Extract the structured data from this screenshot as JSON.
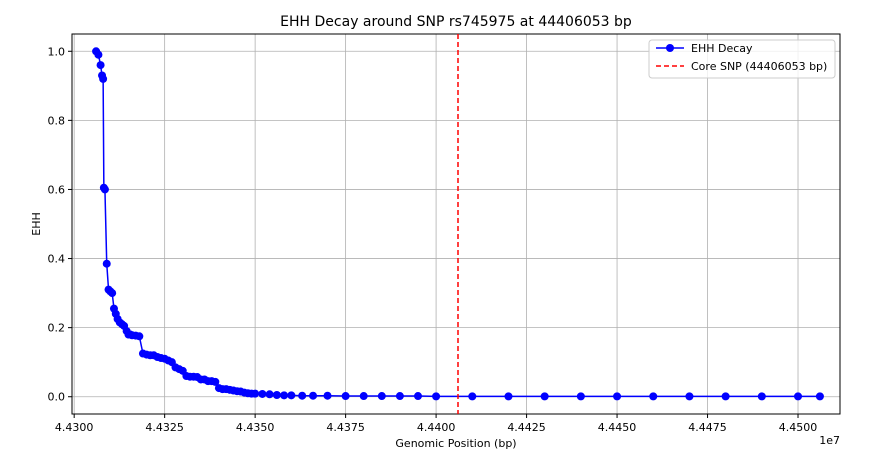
{
  "chart_data": {
    "type": "line",
    "title": "EHH Decay around SNP rs745975 at 44406053 bp",
    "xlabel": "Genomic Position (bp)",
    "ylabel": "EHH",
    "x_offset_label": "1e7",
    "xlim": [
      44299400,
      44511600
    ],
    "ylim": [
      -0.05,
      1.05
    ],
    "x_ticks": [
      44300000,
      44325000,
      44350000,
      44375000,
      44400000,
      44425000,
      44450000,
      44475000,
      44500000
    ],
    "x_tick_labels": [
      "4.4300",
      "4.4325",
      "4.4350",
      "4.4375",
      "4.4400",
      "4.4425",
      "4.4450",
      "4.4475",
      "4.4500"
    ],
    "y_ticks": [
      0.0,
      0.2,
      0.4,
      0.6,
      0.8,
      1.0
    ],
    "y_tick_labels": [
      "0.0",
      "0.2",
      "0.4",
      "0.6",
      "0.8",
      "1.0"
    ],
    "grid": true,
    "legend_position": "top-right",
    "core_snp_position": 44406053,
    "series": [
      {
        "name": "EHH Decay",
        "color": "#0000ff",
        "marker": "circle",
        "x": [
          44306053,
          44306700,
          44307300,
          44307700,
          44308000,
          44308200,
          44308500,
          44309000,
          44309500,
          44310000,
          44310500,
          44311000,
          44311500,
          44312000,
          44312600,
          44313200,
          44313800,
          44314500,
          44315000,
          44315500,
          44316000,
          44317000,
          44318000,
          44319000,
          44320000,
          44321000,
          44322000,
          44323000,
          44324000,
          44325000,
          44326000,
          44327000,
          44328000,
          44329000,
          44330000,
          44331000,
          44332000,
          44333000,
          44334000,
          44335000,
          44336000,
          44337000,
          44338000,
          44339000,
          44340000,
          44341000,
          44342000,
          44343000,
          44344000,
          44345000,
          44346000,
          44347000,
          44348000,
          44349000,
          44350000,
          44352000,
          44354000,
          44356000,
          44358000,
          44360000,
          44363000,
          44366000,
          44370000,
          44375000,
          44380000,
          44385000,
          44390000,
          44395000,
          44400000,
          44410000,
          44420000,
          44430000,
          44440000,
          44450000,
          44460000,
          44470000,
          44480000,
          44490000,
          44500000,
          44506053
        ],
        "y": [
          1.0,
          0.99,
          0.96,
          0.93,
          0.92,
          0.605,
          0.6,
          0.385,
          0.31,
          0.305,
          0.3,
          0.255,
          0.24,
          0.225,
          0.215,
          0.21,
          0.205,
          0.19,
          0.18,
          0.18,
          0.178,
          0.177,
          0.175,
          0.125,
          0.122,
          0.12,
          0.12,
          0.115,
          0.112,
          0.11,
          0.105,
          0.1,
          0.085,
          0.08,
          0.075,
          0.06,
          0.058,
          0.058,
          0.057,
          0.05,
          0.05,
          0.045,
          0.045,
          0.043,
          0.025,
          0.022,
          0.022,
          0.02,
          0.018,
          0.016,
          0.015,
          0.012,
          0.01,
          0.009,
          0.009,
          0.008,
          0.007,
          0.005,
          0.004,
          0.004,
          0.003,
          0.003,
          0.003,
          0.002,
          0.002,
          0.002,
          0.002,
          0.002,
          0.001,
          0.001,
          0.001,
          0.001,
          0.001,
          0.001,
          0.001,
          0.001,
          0.001,
          0.001,
          0.001,
          0.001
        ]
      },
      {
        "name": "Core SNP (44406053 bp)",
        "color": "#ff0000",
        "style": "dashed"
      }
    ]
  }
}
